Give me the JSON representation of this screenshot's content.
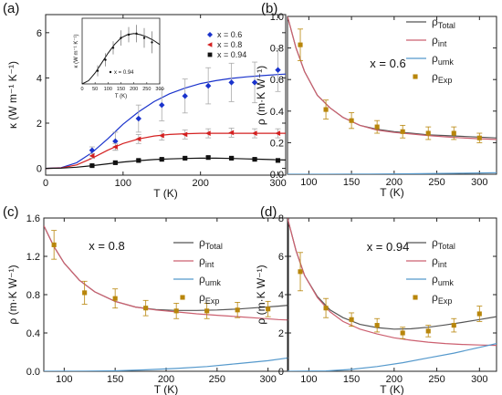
{
  "chart_data": [
    {
      "type": "scatter",
      "panel": "(a)",
      "xlabel": "T (K)",
      "ylabel": "κ (W m⁻¹ K⁻¹)",
      "xlim": [
        0,
        310
      ],
      "ylim": [
        -0.3,
        6.8
      ],
      "xticks": [
        0,
        100,
        200,
        300
      ],
      "yticks": [
        0,
        2,
        4,
        6
      ],
      "legend_position": "top-right",
      "series": [
        {
          "name": "x = 0.6",
          "color": "#1a33cc",
          "marker": "diamond",
          "x": [
            60,
            90,
            120,
            150,
            180,
            210,
            240,
            270,
            300
          ],
          "y": [
            0.8,
            1.2,
            2.2,
            2.8,
            3.2,
            3.65,
            3.8,
            3.8,
            4.35
          ],
          "err": [
            0.15,
            0.4,
            0.6,
            0.7,
            0.75,
            0.8,
            0.85,
            0.9,
            0.95
          ],
          "fit_x": [
            0,
            20,
            40,
            60,
            80,
            100,
            120,
            140,
            160,
            180,
            200,
            220,
            240,
            260,
            280,
            300,
            310
          ],
          "fit_y": [
            0,
            0.03,
            0.25,
            0.7,
            1.3,
            1.95,
            2.5,
            2.95,
            3.3,
            3.55,
            3.75,
            3.88,
            3.98,
            4.05,
            4.1,
            4.15,
            4.17
          ]
        },
        {
          "name": "x = 0.8",
          "color": "#d42020",
          "marker": "triangle-left",
          "x": [
            60,
            90,
            120,
            150,
            180,
            210,
            240,
            270,
            300
          ],
          "y": [
            0.55,
            0.95,
            1.3,
            1.45,
            1.5,
            1.55,
            1.58,
            1.55,
            1.55
          ],
          "err": [
            0.1,
            0.15,
            0.2,
            0.2,
            0.2,
            0.2,
            0.2,
            0.2,
            0.2
          ],
          "fit_x": [
            0,
            20,
            40,
            60,
            80,
            100,
            120,
            140,
            160,
            180,
            200,
            220,
            240,
            260,
            280,
            300,
            310
          ],
          "fit_y": [
            0,
            0.02,
            0.15,
            0.45,
            0.8,
            1.1,
            1.3,
            1.43,
            1.5,
            1.53,
            1.55,
            1.55,
            1.55,
            1.55,
            1.55,
            1.55,
            1.55
          ]
        },
        {
          "name": "x = 0.94",
          "color": "#111111",
          "marker": "square",
          "x": [
            60,
            90,
            120,
            150,
            180,
            210,
            240,
            270,
            300
          ],
          "y": [
            0.12,
            0.25,
            0.35,
            0.4,
            0.45,
            0.48,
            0.45,
            0.4,
            0.35
          ],
          "err": [
            0.05,
            0.05,
            0.05,
            0.05,
            0.05,
            0.05,
            0.05,
            0.05,
            0.05
          ],
          "fit_x": [
            0,
            20,
            40,
            60,
            80,
            100,
            120,
            140,
            160,
            180,
            200,
            220,
            240,
            260,
            280,
            300,
            310
          ],
          "fit_y": [
            0,
            0.01,
            0.05,
            0.12,
            0.2,
            0.28,
            0.34,
            0.39,
            0.42,
            0.44,
            0.45,
            0.45,
            0.44,
            0.42,
            0.4,
            0.38,
            0.37
          ]
        }
      ],
      "inset": {
        "xlabel": "T (K)",
        "ylabel": "κ (W m⁻¹ K⁻¹)",
        "xlim": [
          0,
          300
        ],
        "ylim": [
          0,
          0.6
        ],
        "xticks": [
          0,
          50,
          100,
          150,
          200,
          250,
          300
        ],
        "legend": "x = 0.94",
        "x": [
          60,
          90,
          120,
          150,
          180,
          210,
          240,
          270
        ],
        "y": [
          0.12,
          0.22,
          0.33,
          0.42,
          0.45,
          0.46,
          0.42,
          0.38
        ],
        "err": [
          0.05,
          0.06,
          0.06,
          0.07,
          0.07,
          0.08,
          0.09,
          0.1
        ],
        "fit_x": [
          0,
          25,
          50,
          75,
          100,
          125,
          150,
          175,
          200,
          225,
          250,
          275,
          300
        ],
        "fit_y": [
          0,
          0.03,
          0.1,
          0.19,
          0.28,
          0.36,
          0.42,
          0.45,
          0.46,
          0.45,
          0.43,
          0.4,
          0.36
        ]
      }
    },
    {
      "type": "scatter",
      "panel": "(b)",
      "annotation": "x = 0.6",
      "xlabel": "T (K)",
      "ylabel": "ρ (m·K W⁻¹)",
      "xlim": [
        75,
        320
      ],
      "ylim": [
        0,
        1.0
      ],
      "xticks": [
        100,
        150,
        200,
        250,
        300
      ],
      "yticks": [
        0.0,
        0.2,
        0.4,
        0.6,
        0.8,
        1.0
      ],
      "legend_position": "top-right",
      "series": [
        {
          "name": "ρTotal",
          "label": "ρ",
          "sub": "Total",
          "color": "#555555",
          "fit_x": [
            75,
            85,
            95,
            110,
            125,
            140,
            160,
            180,
            200,
            220,
            240,
            260,
            280,
            300,
            320
          ],
          "fit_y": [
            1.0,
            0.8,
            0.65,
            0.5,
            0.42,
            0.36,
            0.31,
            0.285,
            0.27,
            0.26,
            0.25,
            0.245,
            0.24,
            0.235,
            0.23
          ]
        },
        {
          "name": "ρint",
          "label": "ρ",
          "sub": "int",
          "color": "#cc6070",
          "fit_x": [
            75,
            85,
            95,
            110,
            125,
            140,
            160,
            180,
            200,
            220,
            240,
            260,
            280,
            300,
            320
          ],
          "fit_y": [
            1.0,
            0.8,
            0.65,
            0.5,
            0.42,
            0.36,
            0.31,
            0.28,
            0.265,
            0.255,
            0.245,
            0.237,
            0.23,
            0.225,
            0.22
          ]
        },
        {
          "name": "ρumk",
          "label": "ρ",
          "sub": "umk",
          "color": "#5599cc",
          "fit_x": [
            75,
            120,
            170,
            220,
            270,
            320
          ],
          "fit_y": [
            0.0,
            0.0,
            0.001,
            0.003,
            0.006,
            0.01
          ]
        },
        {
          "name": "ρExp",
          "label": "ρ",
          "sub": "Exp",
          "color": "#b8860b",
          "marker": "square",
          "x": [
            90,
            120,
            150,
            180,
            210,
            240,
            270,
            300
          ],
          "y": [
            0.82,
            0.41,
            0.34,
            0.3,
            0.27,
            0.26,
            0.26,
            0.23
          ],
          "err": [
            0.1,
            0.06,
            0.05,
            0.04,
            0.04,
            0.04,
            0.04,
            0.03
          ]
        }
      ]
    },
    {
      "type": "scatter",
      "panel": "(c)",
      "annotation": "x = 0.8",
      "xlabel": "T (K)",
      "ylabel": "ρ (m·K W⁻¹)",
      "xlim": [
        80,
        320
      ],
      "ylim": [
        0,
        1.6
      ],
      "xticks": [
        100,
        150,
        200,
        250,
        300
      ],
      "yticks": [
        0.0,
        0.4,
        0.8,
        1.2,
        1.6
      ],
      "legend_position": "top-right",
      "series": [
        {
          "name": "ρTotal",
          "label": "ρ",
          "sub": "Total",
          "color": "#555555",
          "fit_x": [
            80,
            90,
            100,
            115,
            130,
            150,
            170,
            190,
            210,
            230,
            250,
            270,
            290,
            310,
            320
          ],
          "fit_y": [
            1.52,
            1.3,
            1.13,
            0.95,
            0.83,
            0.73,
            0.67,
            0.645,
            0.635,
            0.635,
            0.64,
            0.65,
            0.665,
            0.68,
            0.69
          ]
        },
        {
          "name": "ρint",
          "label": "ρ",
          "sub": "int",
          "color": "#cc6070",
          "fit_x": [
            80,
            90,
            100,
            115,
            130,
            150,
            170,
            190,
            210,
            230,
            250,
            270,
            290,
            310,
            320
          ],
          "fit_y": [
            1.52,
            1.3,
            1.13,
            0.95,
            0.83,
            0.73,
            0.67,
            0.64,
            0.62,
            0.6,
            0.585,
            0.57,
            0.555,
            0.54,
            0.535
          ]
        },
        {
          "name": "ρumk",
          "label": "ρ",
          "sub": "umk",
          "color": "#5599cc",
          "fit_x": [
            80,
            120,
            150,
            180,
            210,
            240,
            270,
            300,
            320
          ],
          "fit_y": [
            0.0,
            0.001,
            0.005,
            0.015,
            0.03,
            0.05,
            0.08,
            0.11,
            0.14
          ]
        },
        {
          "name": "ρExp",
          "label": "ρ",
          "sub": "Exp",
          "color": "#b8860b",
          "marker": "square",
          "x": [
            90,
            120,
            150,
            180,
            210,
            240,
            270,
            300
          ],
          "y": [
            1.32,
            0.82,
            0.76,
            0.66,
            0.63,
            0.63,
            0.64,
            0.65
          ],
          "err": [
            0.15,
            0.12,
            0.1,
            0.08,
            0.08,
            0.08,
            0.08,
            0.08
          ]
        }
      ]
    },
    {
      "type": "scatter",
      "panel": "(d)",
      "annotation": "x = 0.94",
      "xlabel": "T (K)",
      "ylabel": "ρ (m·K W⁻¹)",
      "xlim": [
        75,
        320
      ],
      "ylim": [
        0,
        8
      ],
      "xticks": [
        100,
        150,
        200,
        250,
        300
      ],
      "yticks": [
        0,
        2,
        4,
        6,
        8
      ],
      "legend_position": "top-right",
      "series": [
        {
          "name": "ρTotal",
          "label": "ρ",
          "sub": "Total",
          "color": "#555555",
          "fit_x": [
            75,
            85,
            95,
            110,
            125,
            140,
            160,
            180,
            200,
            220,
            240,
            260,
            280,
            300,
            320
          ],
          "fit_y": [
            8.0,
            6.3,
            5.0,
            3.9,
            3.2,
            2.8,
            2.45,
            2.28,
            2.2,
            2.22,
            2.3,
            2.42,
            2.55,
            2.7,
            2.85
          ]
        },
        {
          "name": "ρint",
          "label": "ρ",
          "sub": "int",
          "color": "#cc6070",
          "fit_x": [
            75,
            85,
            95,
            110,
            125,
            140,
            160,
            180,
            200,
            220,
            240,
            260,
            280,
            300,
            320
          ],
          "fit_y": [
            8.0,
            6.3,
            5.0,
            3.85,
            3.1,
            2.6,
            2.2,
            1.95,
            1.75,
            1.62,
            1.52,
            1.45,
            1.4,
            1.37,
            1.35
          ]
        },
        {
          "name": "ρumk",
          "label": "ρ",
          "sub": "umk",
          "color": "#5599cc",
          "fit_x": [
            75,
            120,
            150,
            180,
            210,
            240,
            270,
            300,
            320
          ],
          "fit_y": [
            0.0,
            0.02,
            0.1,
            0.25,
            0.45,
            0.7,
            0.95,
            1.25,
            1.45
          ]
        },
        {
          "name": "ρExp",
          "label": "ρ",
          "sub": "Exp",
          "color": "#b8860b",
          "marker": "square",
          "x": [
            90,
            120,
            150,
            180,
            210,
            240,
            270,
            300
          ],
          "y": [
            5.2,
            3.3,
            2.7,
            2.4,
            2.0,
            2.1,
            2.4,
            3.0
          ],
          "err": [
            1.0,
            0.5,
            0.35,
            0.35,
            0.3,
            0.3,
            0.35,
            0.4
          ]
        }
      ]
    }
  ]
}
